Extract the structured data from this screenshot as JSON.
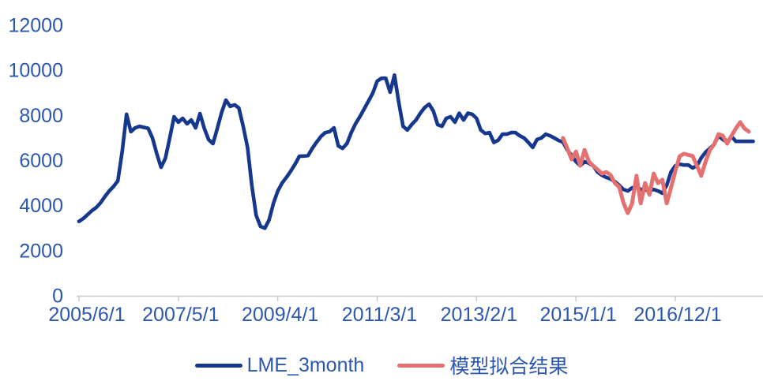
{
  "chart_data": {
    "type": "line",
    "title": "",
    "xlabel": "",
    "ylabel": "",
    "grid": false,
    "background": "#FFFFFF",
    "x_unit": "month",
    "x_start_label": "2005/6/1",
    "x_end_label": "2018/6",
    "ylim": [
      0,
      12000
    ],
    "y_ticks": [
      0,
      2000,
      4000,
      6000,
      8000,
      10000,
      12000
    ],
    "x_ticks": [
      {
        "label": "2005/6/1",
        "month_index": 0
      },
      {
        "label": "2007/5/1",
        "month_index": 23
      },
      {
        "label": "2009/4/1",
        "month_index": 46
      },
      {
        "label": "2011/3/1",
        "month_index": 69
      },
      {
        "label": "2013/2/1",
        "month_index": 92
      },
      {
        "label": "2015/1/1",
        "month_index": 115
      },
      {
        "label": "2016/12/1",
        "month_index": 138
      }
    ],
    "legend_position": "bottom",
    "series": [
      {
        "name": "LME_3month",
        "color": "#15378D",
        "stroke_width": 4.6,
        "start_month_index": 0,
        "start_date": "2005/6",
        "values": [
          3300,
          3430,
          3600,
          3780,
          3920,
          4130,
          4400,
          4650,
          4850,
          5100,
          6400,
          8050,
          7280,
          7450,
          7520,
          7470,
          7430,
          7000,
          6300,
          5700,
          6100,
          7000,
          7940,
          7700,
          7870,
          7630,
          7800,
          7450,
          8080,
          7420,
          6930,
          6750,
          7420,
          8120,
          8680,
          8400,
          8470,
          8330,
          7520,
          6580,
          4900,
          3570,
          3080,
          3000,
          3370,
          4100,
          4650,
          5000,
          5250,
          5530,
          5840,
          6190,
          6200,
          6220,
          6540,
          6820,
          7070,
          7240,
          7280,
          7450,
          6650,
          6540,
          6750,
          7240,
          7630,
          7940,
          8290,
          8640,
          8990,
          9520,
          9650,
          9650,
          9030,
          9790,
          8570,
          7520,
          7350,
          7600,
          7800,
          8100,
          8350,
          8500,
          8200,
          7590,
          7520,
          7870,
          7940,
          7700,
          8100,
          7800,
          8100,
          8050,
          7870,
          7350,
          7200,
          7240,
          6800,
          6900,
          7170,
          7170,
          7240,
          7240,
          7100,
          7000,
          6800,
          6580,
          6930,
          7000,
          7170,
          7100,
          7000,
          6890,
          6820,
          6470,
          6230,
          5950,
          5770,
          5950,
          5880,
          5770,
          5490,
          5350,
          5250,
          5180,
          5070,
          4900,
          4720,
          4650,
          4790,
          4830,
          4720,
          4700,
          4650,
          4720,
          4650,
          4550,
          4900,
          5490,
          5770,
          5840,
          5800,
          5800,
          5670,
          5770,
          6120,
          6370,
          6540,
          6720,
          7100,
          6930,
          6820,
          7070,
          6850,
          6850,
          6850,
          6850,
          6850
        ]
      },
      {
        "name": "模型拟合结果",
        "color": "#E57070",
        "stroke_width": 5,
        "start_month_index": 112,
        "start_date": "2014/10",
        "values": [
          7000,
          6540,
          6050,
          6400,
          5770,
          6470,
          5950,
          5770,
          5600,
          5420,
          5490,
          5360,
          5000,
          4830,
          4130,
          3670,
          4100,
          5320,
          4100,
          5000,
          4480,
          5420,
          5000,
          5150,
          4100,
          4790,
          5530,
          6190,
          6300,
          6250,
          6200,
          5770,
          5320,
          5950,
          6470,
          6720,
          7170,
          7100,
          6750,
          7100,
          7420,
          7700,
          7420,
          7280
        ]
      }
    ]
  },
  "legend": {
    "items": [
      {
        "label": "LME_3month",
        "color": "#15378D"
      },
      {
        "label": "模型拟合结果",
        "color": "#E57070"
      }
    ]
  },
  "colors": {
    "axis_label": "#2B57B0",
    "axis_line": "#C9C9C9",
    "series_blue": "#15378D",
    "series_red": "#E57070",
    "background": "#FFFFFF"
  }
}
